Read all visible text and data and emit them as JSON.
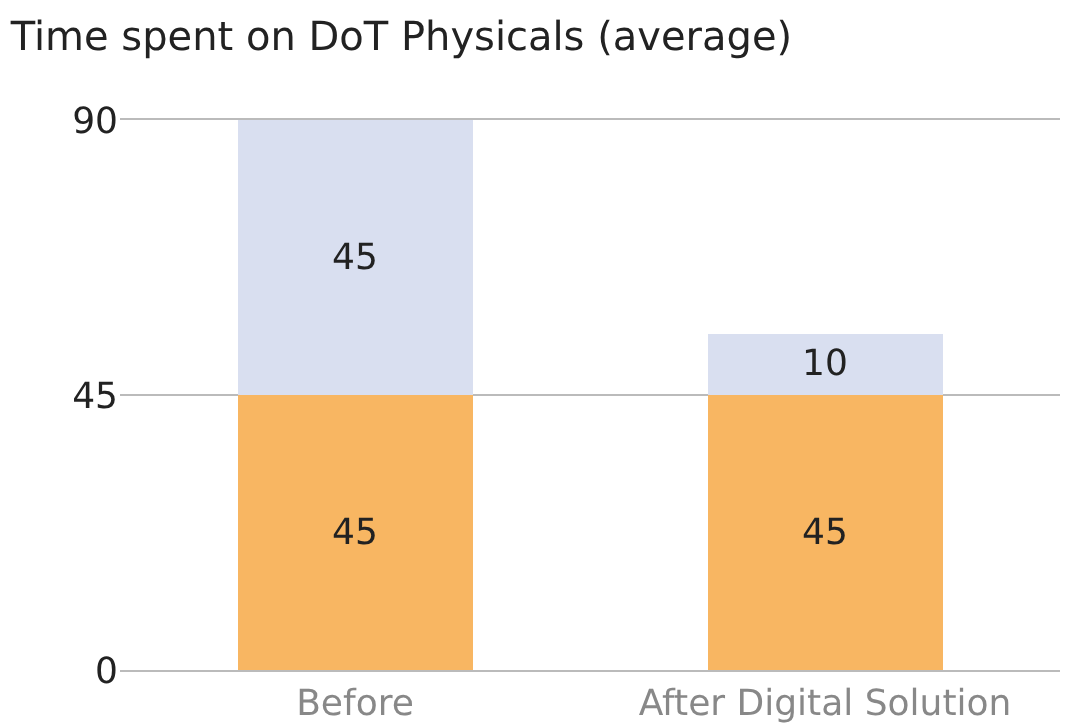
{
  "chart_data": {
    "type": "bar",
    "title": "Time spent on DoT Physicals (average)",
    "categories": [
      "Before",
      "After Digital Solution"
    ],
    "stacked": true,
    "series": [
      {
        "color": "#f8b662",
        "values": [
          45,
          45
        ]
      },
      {
        "color": "#d9dff0",
        "values": [
          45,
          10
        ]
      }
    ],
    "ylim": [
      0,
      90
    ],
    "yticks": [
      0,
      45,
      90
    ],
    "grid": "y",
    "data_labels": true
  }
}
